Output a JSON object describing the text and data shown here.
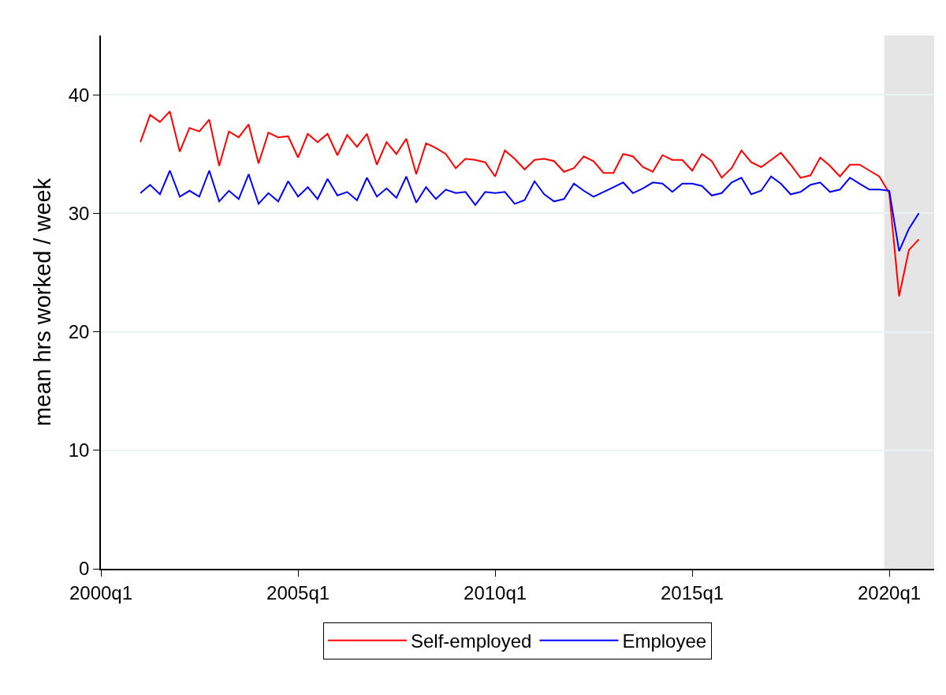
{
  "chart_data": {
    "type": "line",
    "ylabel": "mean hrs worked / week",
    "x": [
      "2001-01",
      "2001-04",
      "2001-07",
      "2001-10",
      "2002-01",
      "2002-04",
      "2002-07",
      "2002-10",
      "2003-01",
      "2003-04",
      "2003-07",
      "2003-10",
      "2004-01",
      "2004-04",
      "2004-07",
      "2004-10",
      "2005-01",
      "2005-04",
      "2005-07",
      "2005-10",
      "2006-01",
      "2006-04",
      "2006-07",
      "2006-10",
      "2007-01",
      "2007-04",
      "2007-07",
      "2007-10",
      "2008-01",
      "2008-04",
      "2008-07",
      "2008-10",
      "2009-01",
      "2009-04",
      "2009-07",
      "2009-10",
      "2010-01",
      "2010-04",
      "2010-07",
      "2010-10",
      "2011-01",
      "2011-04",
      "2011-07",
      "2011-10",
      "2012-01",
      "2012-04",
      "2012-07",
      "2012-10",
      "2013-01",
      "2013-04",
      "2013-07",
      "2013-10",
      "2014-01",
      "2014-04",
      "2014-07",
      "2014-10",
      "2015-01",
      "2015-04",
      "2015-07",
      "2015-10",
      "2016-01",
      "2016-04",
      "2016-07",
      "2016-10",
      "2017-01",
      "2017-04",
      "2017-07",
      "2017-10",
      "2018-01",
      "2018-04",
      "2018-07",
      "2018-10",
      "2019-01",
      "2019-04",
      "2019-07",
      "2019-10",
      "2020-01",
      "2020-04",
      "2020-07",
      "2020-10"
    ],
    "series": [
      {
        "name": "Self-employed",
        "color": "#ff0000",
        "values": [
          36.0,
          38.3,
          37.7,
          38.6,
          35.2,
          37.2,
          36.9,
          37.9,
          34.0,
          36.9,
          36.4,
          37.5,
          34.2,
          36.8,
          36.4,
          36.5,
          34.7,
          36.7,
          36.0,
          36.7,
          34.9,
          36.6,
          35.6,
          36.7,
          34.1,
          36.0,
          35.0,
          36.3,
          33.3,
          35.9,
          35.5,
          35.0,
          33.8,
          34.6,
          34.5,
          34.3,
          33.1,
          35.3,
          34.6,
          33.7,
          34.5,
          34.6,
          34.4,
          33.5,
          33.8,
          34.8,
          34.4,
          33.4,
          33.4,
          35.0,
          34.8,
          33.9,
          33.5,
          34.9,
          34.5,
          34.5,
          33.6,
          35.0,
          34.4,
          33.0,
          33.8,
          35.3,
          34.3,
          33.9,
          34.5,
          35.1,
          34.1,
          33.0,
          33.2,
          34.7,
          34.0,
          33.1,
          34.1,
          34.1,
          33.6,
          33.1,
          31.7,
          23.0,
          26.9,
          27.8
        ]
      },
      {
        "name": "Employee",
        "color": "#0000ff",
        "values": [
          31.7,
          32.4,
          31.6,
          33.6,
          31.4,
          31.9,
          31.4,
          33.6,
          31.0,
          31.9,
          31.2,
          33.3,
          30.8,
          31.7,
          31.0,
          32.7,
          31.4,
          32.2,
          31.2,
          32.9,
          31.5,
          31.8,
          31.1,
          33.0,
          31.4,
          32.1,
          31.3,
          33.1,
          30.9,
          32.2,
          31.2,
          32.0,
          31.7,
          31.8,
          30.7,
          31.8,
          31.7,
          31.8,
          30.8,
          31.1,
          32.7,
          31.6,
          31.0,
          31.2,
          32.5,
          31.9,
          31.4,
          31.8,
          32.2,
          32.6,
          31.7,
          32.1,
          32.6,
          32.5,
          31.8,
          32.5,
          32.5,
          32.3,
          31.5,
          31.7,
          32.6,
          33.0,
          31.6,
          31.9,
          33.1,
          32.5,
          31.6,
          31.8,
          32.4,
          32.6,
          31.8,
          32.0,
          33.0,
          32.5,
          32.0,
          32.0,
          31.9,
          26.8,
          28.7,
          30.0
        ]
      }
    ],
    "xlim": [
      "2000-01-01",
      "2021-02-20"
    ],
    "xticks": [
      {
        "value": "2000-01-01",
        "label": "2000q1"
      },
      {
        "value": "2005-01-01",
        "label": "2005q1"
      },
      {
        "value": "2010-01-01",
        "label": "2010q1"
      },
      {
        "value": "2015-01-01",
        "label": "2015q1"
      },
      {
        "value": "2020-01-01",
        "label": "2020q1"
      }
    ],
    "ylim": [
      0,
      45
    ],
    "yticks": [
      0,
      10,
      20,
      30,
      40
    ],
    "bands": [
      {
        "axis": "x",
        "from": "2019-11-15",
        "to": "2021-02-20",
        "color": "#e5e5e5"
      }
    ],
    "grid": "y",
    "legend": "bottom",
    "marker": "none",
    "line_style": "solid"
  }
}
